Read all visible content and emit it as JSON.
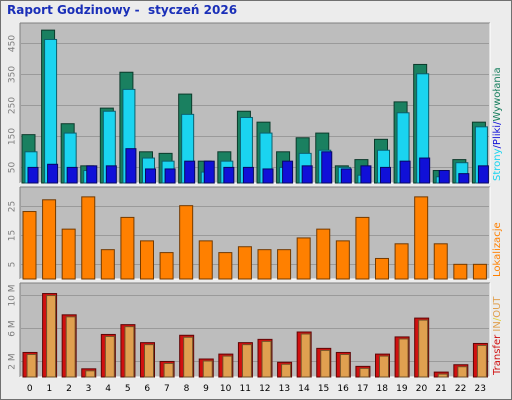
{
  "title": "Raport Godzinowy -  styczeń 2026",
  "colors": {
    "background": "#ececec",
    "plot_bg": "#bdbdbd",
    "grid": "#9a9a9a",
    "hits": "#1a8060",
    "files": "#1ad4f0",
    "pages": "#1010d8",
    "sites": "#ff8000",
    "kbin": "#e0a050",
    "kbout": "#d01010"
  },
  "chart_data": [
    {
      "type": "bar",
      "categories": [
        "0",
        "1",
        "2",
        "3",
        "4",
        "5",
        "6",
        "7",
        "8",
        "9",
        "10",
        "11",
        "12",
        "13",
        "14",
        "15",
        "16",
        "17",
        "18",
        "19",
        "20",
        "21",
        "22",
        "23"
      ],
      "series": [
        {
          "name": "Wywołania",
          "values": [
            155,
            490,
            190,
            55,
            240,
            355,
            100,
            95,
            285,
            70,
            100,
            230,
            195,
            100,
            145,
            160,
            55,
            75,
            140,
            260,
            380,
            40,
            75,
            195
          ]
        },
        {
          "name": "Pliki",
          "values": [
            100,
            460,
            160,
            40,
            230,
            300,
            80,
            70,
            220,
            35,
            70,
            210,
            160,
            50,
            95,
            105,
            50,
            25,
            105,
            225,
            350,
            20,
            65,
            180
          ]
        },
        {
          "name": "Strony",
          "values": [
            50,
            60,
            50,
            55,
            55,
            110,
            45,
            45,
            70,
            70,
            50,
            50,
            45,
            70,
            55,
            100,
            45,
            55,
            50,
            70,
            80,
            40,
            30,
            55
          ]
        }
      ],
      "ylim": [
        0,
        500
      ],
      "yticks": [
        "50",
        "150",
        "250",
        "350",
        "450"
      ],
      "side_label": [
        {
          "text": "Strony",
          "color": "#1ad4f0"
        },
        {
          "text": "/",
          "color": "#1010d8"
        },
        {
          "text": "Pliki",
          "color": "#1010d8"
        },
        {
          "text": "/",
          "color": "#1010d8"
        },
        {
          "text": "Wywołania",
          "color": "#1a8060"
        }
      ]
    },
    {
      "type": "bar",
      "categories": [
        "0",
        "1",
        "2",
        "3",
        "4",
        "5",
        "6",
        "7",
        "8",
        "9",
        "10",
        "11",
        "12",
        "13",
        "14",
        "15",
        "16",
        "17",
        "18",
        "19",
        "20",
        "21",
        "22",
        "23"
      ],
      "series": [
        {
          "name": "Lokalizacje",
          "values": [
            23,
            27,
            17,
            28,
            10,
            21,
            13,
            9,
            25,
            13,
            9,
            11,
            10,
            10,
            14,
            17,
            13,
            21,
            7,
            12,
            28,
            12,
            5,
            5
          ]
        }
      ],
      "ylim": [
        0,
        30
      ],
      "yticks": [
        "5",
        "15",
        "25"
      ],
      "side_label": [
        {
          "text": "Lokalizacje",
          "color": "#ff8000"
        }
      ]
    },
    {
      "type": "bar",
      "categories": [
        "0",
        "1",
        "2",
        "3",
        "4",
        "5",
        "6",
        "7",
        "8",
        "9",
        "10",
        "11",
        "12",
        "13",
        "14",
        "15",
        "16",
        "17",
        "18",
        "19",
        "20",
        "21",
        "22",
        "23"
      ],
      "series": [
        {
          "name": "Transfer",
          "values": [
            3.0,
            10.2,
            7.6,
            1.0,
            5.2,
            6.4,
            4.2,
            1.9,
            5.1,
            2.2,
            2.8,
            4.2,
            4.6,
            1.8,
            5.5,
            3.5,
            3.0,
            1.3,
            2.8,
            4.9,
            7.2,
            0.6,
            1.5,
            4.1
          ]
        }
      ],
      "ylim": [
        0,
        11
      ],
      "yticks": [
        "2 M",
        "6 M",
        "10 M"
      ],
      "side_label": [
        {
          "text": "Transfer",
          "color": "#d01010"
        },
        {
          "text": " IN",
          "color": "#e0a050"
        },
        {
          "text": "/",
          "color": "#e0d040"
        },
        {
          "text": "OUT",
          "color": "#e0a050"
        }
      ]
    }
  ]
}
